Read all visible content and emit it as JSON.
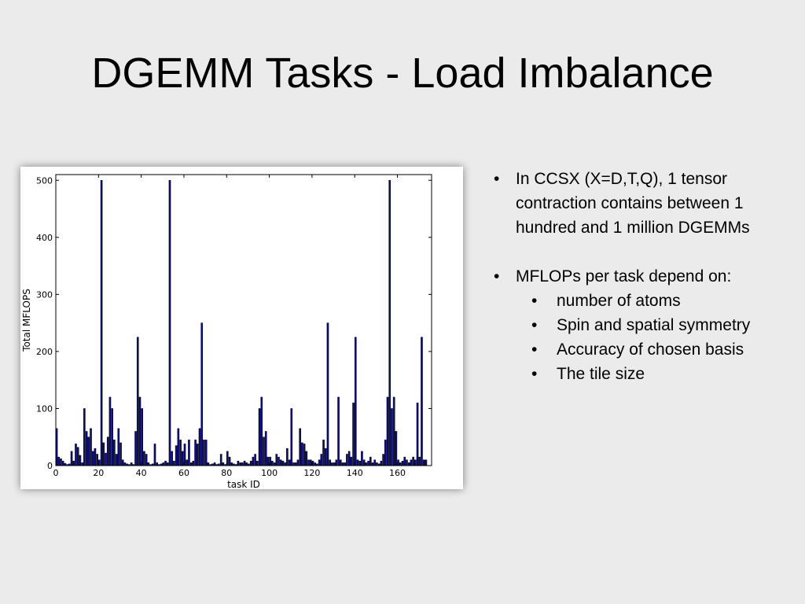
{
  "slide": {
    "title": "DGEMM Tasks - Load Imbalance"
  },
  "bullets": {
    "b1": "In CCSX (X=D,T,Q), 1 tensor contraction contains between 1 hundred and 1 million DGEMMs",
    "b2": "MFLOPs per task depend on:",
    "sub": [
      "number of atoms",
      "Spin and spatial symmetry",
      "Accuracy of chosen basis",
      "The tile size"
    ]
  },
  "colors": {
    "bar_fill": "#0d0d80",
    "bar_edge": "#000000",
    "background": "#ebebeb"
  },
  "chart_data": {
    "type": "bar",
    "xlabel": "task ID",
    "ylabel": "Total MFLOPS",
    "xlim": [
      0,
      176
    ],
    "ylim": [
      0,
      510
    ],
    "xticks": [
      0,
      20,
      40,
      60,
      80,
      100,
      120,
      140,
      160
    ],
    "yticks": [
      0,
      100,
      200,
      300,
      400,
      500
    ],
    "grid": false,
    "legend": "none",
    "values": [
      65,
      15,
      12,
      8,
      4,
      2,
      3,
      25,
      8,
      38,
      32,
      18,
      5,
      100,
      60,
      50,
      65,
      25,
      30,
      20,
      10,
      500,
      40,
      22,
      50,
      120,
      100,
      45,
      20,
      65,
      40,
      10,
      5,
      3,
      2,
      5,
      2,
      60,
      225,
      120,
      100,
      25,
      20,
      5,
      2,
      3,
      38,
      5,
      2,
      3,
      5,
      8,
      5,
      500,
      25,
      8,
      35,
      65,
      45,
      25,
      38,
      10,
      45,
      5,
      8,
      45,
      38,
      65,
      250,
      45,
      45,
      5,
      2,
      3,
      5,
      2,
      3,
      20,
      5,
      2,
      25,
      15,
      5,
      3,
      2,
      8,
      5,
      5,
      8,
      5,
      3,
      8,
      15,
      20,
      8,
      100,
      120,
      50,
      60,
      15,
      15,
      8,
      5,
      20,
      15,
      10,
      8,
      5,
      30,
      10,
      100,
      5,
      5,
      10,
      65,
      40,
      38,
      25,
      10,
      10,
      8,
      5,
      3,
      10,
      20,
      45,
      30,
      250,
      10,
      5,
      5,
      10,
      120,
      10,
      5,
      5,
      20,
      25,
      15,
      110,
      225,
      10,
      8,
      25,
      10,
      5,
      8,
      15,
      5,
      10,
      5,
      3,
      8,
      20,
      45,
      120,
      500,
      100,
      120,
      60,
      10,
      5,
      8,
      15,
      10,
      5,
      10,
      15,
      10,
      110,
      15,
      225,
      10,
      10
    ]
  }
}
